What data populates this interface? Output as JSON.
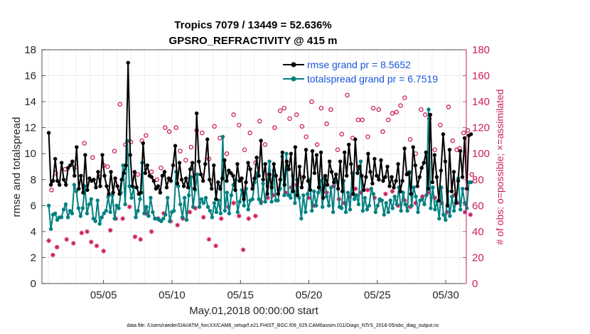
{
  "chart_data": {
    "type": "line",
    "title": "Tropics 7079 / 13449 = 52.636%",
    "subtitle": "GPSRO_REFRACTIVITY @ 415 m",
    "xlabel": "May.01,2018 00:00:00 start",
    "ylabel_left": "rmse and totalspread",
    "ylabel_right": "# of obs: o=possible; ×=assimilated",
    "footer": "data file: /Users/raeder/DAI/ATM_forcXX/CAM6_setup/f.e21.FHIST_BGC.f09_025.CAM6assim.011/Diags_NTrS_2018-05/obs_diag_output.nc",
    "xlim": [
      0.5,
      31.5
    ],
    "x_ticks": [
      5,
      10,
      15,
      20,
      25,
      30
    ],
    "x_tick_labels": [
      "05/05",
      "05/10",
      "05/15",
      "05/20",
      "05/25",
      "05/30"
    ],
    "ylim_left": [
      0,
      18
    ],
    "y_left_ticks": [
      "0",
      "2",
      "4",
      "6",
      "8",
      "10",
      "12",
      "14",
      "16",
      "18"
    ],
    "ylim_right": [
      0,
      180
    ],
    "y_right_ticks": [
      "0",
      "20",
      "40",
      "60",
      "80",
      "100",
      "120",
      "140",
      "160",
      "180"
    ],
    "series": [
      {
        "name": "rmse grand pr = 8.5652",
        "color": "#000000",
        "marker": "filled-circle",
        "axis": "left",
        "values": [
          11.6,
          7.6,
          7.9,
          9.6,
          7.9,
          7.6,
          9.3,
          8.0,
          7.6,
          8.9,
          9.1,
          9.4,
          8.3,
          10.5,
          7.3,
          8.3,
          7.0,
          9.9,
          7.2,
          8.1,
          7.9,
          8.0,
          7.4,
          8.6,
          7.5,
          9.9,
          8.3,
          7.5,
          6.9,
          8.6,
          7.0,
          8.1,
          7.5,
          6.9,
          8.0,
          8.5,
          9.1,
          17.0,
          9.9,
          7.5,
          8.6,
          7.4,
          6.9,
          7.0,
          10.8,
          8.5,
          9.1,
          8.3,
          8.2,
          7.9,
          7.3,
          7.5,
          7.0,
          8.3,
          8.6,
          7.4,
          8.1,
          7.9,
          9.1,
          10.6,
          7.7,
          9.3,
          8.0,
          7.5,
          8.1,
          7.4,
          8.8,
          9.3,
          7.3,
          13.1,
          9.4,
          8.4,
          7.9,
          9.2,
          11.1,
          8.0,
          7.3,
          9.1,
          6.5,
          7.8,
          7.3,
          8.1,
          9.5,
          7.9,
          8.7,
          8.5,
          8.3,
          7.2,
          9.2,
          7.9,
          8.1,
          6.5,
          7.8,
          9.3,
          8.8,
          7.3,
          8.1,
          9.7,
          8.3,
          11.0,
          8.0,
          9.2,
          6.9,
          8.4,
          7.4,
          9.2,
          8.3,
          6.9,
          8.0,
          10.1,
          7.6,
          9.4,
          8.8,
          10.0,
          7.1,
          10.5,
          6.8,
          9.0,
          7.4,
          8.2,
          10.3,
          7.9,
          7.2,
          10.2,
          8.5,
          9.9,
          7.4,
          10.1,
          6.6,
          8.3,
          7.6,
          9.4,
          8.6,
          7.8,
          8.4,
          7.3,
          9.4,
          7.1,
          10.1,
          8.3,
          10.7,
          9.2,
          6.9,
          11.1,
          8.5,
          9.0,
          8.3,
          7.2,
          8.2,
          10.0,
          8.6,
          7.7,
          9.6,
          8.3,
          8.0,
          9.5,
          7.9,
          8.2,
          9.0,
          7.5,
          8.2,
          7.4,
          7.9,
          9.2,
          7.1,
          7.9,
          10.4,
          8.4,
          8.5,
          6.9,
          10.5,
          9.1,
          7.5,
          8.2,
          8.9,
          9.3,
          10.1,
          7.3,
          13.0,
          7.8,
          9.9,
          8.2,
          6.4,
          8.7,
          11.5,
          9.4,
          6.0,
          10.3,
          7.1,
          8.6,
          6.2,
          7.9,
          10.2,
          8.2,
          11.2,
          7.3,
          11.4,
          11.5
        ]
      },
      {
        "name": "totalspread grand pr = 6.7519",
        "color": "#008080",
        "marker": "filled-circle",
        "axis": "left",
        "values": [
          6.0,
          4.2,
          5.3,
          5.4,
          4.9,
          5.1,
          5.1,
          5.7,
          6.1,
          5.1,
          5.6,
          5.4,
          7.6,
          7.1,
          5.8,
          5.2,
          5.8,
          7.5,
          5.4,
          6.1,
          6.5,
          5.0,
          4.8,
          6.4,
          4.6,
          5.1,
          5.4,
          5.6,
          6.7,
          5.5,
          6.8,
          5.0,
          6.0,
          5.8,
          7.0,
          9.1,
          6.1,
          11.0,
          7.5,
          6.6,
          7.4,
          5.1,
          5.6,
          6.5,
          9.3,
          5.4,
          5.9,
          5.2,
          6.6,
          5.5,
          5.0,
          5.0,
          4.9,
          4.8,
          5.0,
          5.3,
          6.6,
          4.8,
          5.5,
          5.6,
          8.6,
          7.5,
          6.1,
          5.1,
          6.6,
          4.9,
          6.8,
          8.2,
          5.9,
          7.2,
          8.4,
          5.9,
          6.5,
          6.2,
          6.6,
          5.9,
          5.6,
          5.1,
          6.2,
          5.5,
          6.4,
          5.4,
          11.3,
          5.6,
          7.0,
          5.4,
          6.8,
          7.6,
          8.0,
          5.5,
          6.3,
          7.2,
          6.0,
          7.3,
          5.7,
          6.4,
          6.5,
          7.8,
          8.5,
          6.5,
          6.2,
          7.7,
          6.3,
          7.5,
          9.4,
          6.3,
          8.7,
          6.4,
          6.4,
          7.3,
          9.8,
          6.8,
          10.0,
          6.8,
          6.6,
          8.3,
          6.2,
          8.0,
          6.6,
          5.0,
          6.8,
          5.5,
          6.9,
          8.0,
          5.6,
          7.1,
          6.0,
          7.0,
          7.9,
          5.9,
          8.1,
          6.7,
          6.0,
          7.4,
          5.5,
          8.0,
          7.8,
          5.9,
          5.8,
          7.9,
          5.5,
          7.0,
          5.7,
          8.5,
          6.5,
          6.8,
          6.1,
          9.4,
          5.6,
          6.6,
          5.7,
          6.0,
          7.3,
          6.9,
          5.5,
          6.0,
          6.5,
          6.4,
          5.3,
          6.2,
          5.5,
          6.4,
          5.8,
          6.7,
          6.1,
          7.4,
          5.6,
          7.0,
          6.1,
          5.6,
          8.6,
          6.0,
          7.4,
          6.7,
          5.5,
          6.4,
          6.5,
          6.1,
          6.8,
          13.4,
          5.8,
          7.4,
          5.7,
          6.3,
          5.0,
          7.4,
          5.3,
          4.9,
          7.1,
          5.2,
          6.7,
          5.6,
          6.4,
          8.1,
          5.7,
          7.3,
          6.2,
          5.8,
          7.8,
          7.8
        ]
      },
      {
        "name": "obs possible",
        "color": "#cc1c5a",
        "marker": "open-circle",
        "axis": "right",
        "values": [
          [
            1.2,
            72
          ],
          [
            1.5,
            85
          ],
          [
            2.2,
            88
          ],
          [
            3.0,
            90
          ],
          [
            3.6,
            108
          ],
          [
            4.2,
            97
          ],
          [
            4.7,
            82
          ],
          [
            5.0,
            91
          ],
          [
            5.3,
            90
          ],
          [
            5.8,
            102
          ],
          [
            6.2,
            138
          ],
          [
            6.6,
            107
          ],
          [
            7.0,
            109
          ],
          [
            7.5,
            84
          ],
          [
            7.8,
            110
          ],
          [
            8.1,
            114
          ],
          [
            8.5,
            86
          ],
          [
            8.9,
            80
          ],
          [
            9.2,
            89
          ],
          [
            9.5,
            120
          ],
          [
            9.8,
            117
          ],
          [
            10.3,
            120
          ],
          [
            10.6,
            102
          ],
          [
            11.0,
            95
          ],
          [
            11.4,
            105
          ],
          [
            11.8,
            118
          ],
          [
            12.2,
            116
          ],
          [
            12.7,
            96
          ],
          [
            13.1,
            121
          ],
          [
            13.5,
            112
          ],
          [
            14.0,
            100
          ],
          [
            14.5,
            130
          ],
          [
            14.9,
            122
          ],
          [
            15.3,
            103
          ],
          [
            15.7,
            116
          ],
          [
            16.1,
            93
          ],
          [
            16.4,
            125
          ],
          [
            16.8,
            107
          ],
          [
            17.1,
            84
          ],
          [
            17.5,
            120
          ],
          [
            17.9,
            133
          ],
          [
            18.2,
            135
          ],
          [
            18.6,
            127
          ],
          [
            19.1,
            130
          ],
          [
            19.5,
            121
          ],
          [
            19.8,
            113
          ],
          [
            20.2,
            140
          ],
          [
            20.6,
            107
          ],
          [
            20.9,
            135
          ],
          [
            21.3,
            123
          ],
          [
            21.6,
            134
          ],
          [
            22.1,
            103
          ],
          [
            22.4,
            115
          ],
          [
            22.8,
            145
          ],
          [
            23.2,
            112
          ],
          [
            23.6,
            126
          ],
          [
            23.9,
            126
          ],
          [
            24.3,
            113
          ],
          [
            24.7,
            135
          ],
          [
            25.1,
            134
          ],
          [
            25.4,
            117
          ],
          [
            25.8,
            126
          ],
          [
            26.1,
            131
          ],
          [
            26.4,
            132
          ],
          [
            26.7,
            137
          ],
          [
            27.0,
            143
          ],
          [
            27.4,
            111
          ],
          [
            27.8,
            100
          ],
          [
            28.2,
            134
          ],
          [
            28.5,
            130
          ],
          [
            28.8,
            127
          ],
          [
            29.2,
            103
          ],
          [
            29.6,
            122
          ],
          [
            30.2,
            136
          ],
          [
            30.5,
            110
          ],
          [
            30.8,
            103
          ],
          [
            31.0,
            104
          ],
          [
            31.3,
            116
          ],
          [
            31.6,
            118
          ],
          [
            31.9,
            84
          ]
        ]
      },
      {
        "name": "obs assimilated",
        "color": "#cc1c5a",
        "marker": "asterisk",
        "axis": "right",
        "values": [
          [
            1.0,
            33
          ],
          [
            1.3,
            22
          ],
          [
            1.6,
            28
          ],
          [
            2.3,
            34
          ],
          [
            2.8,
            31
          ],
          [
            3.4,
            39
          ],
          [
            3.8,
            40
          ],
          [
            4.1,
            32
          ],
          [
            4.5,
            29
          ],
          [
            5.0,
            25
          ],
          [
            5.5,
            41
          ],
          [
            5.9,
            50
          ],
          [
            6.4,
            50
          ],
          [
            6.9,
            59
          ],
          [
            7.3,
            36
          ],
          [
            7.7,
            34
          ],
          [
            8.1,
            54
          ],
          [
            8.5,
            40
          ],
          [
            9.0,
            50
          ],
          [
            9.4,
            54
          ],
          [
            9.9,
            48
          ],
          [
            10.4,
            45
          ],
          [
            10.8,
            50
          ],
          [
            11.3,
            55
          ],
          [
            11.7,
            58
          ],
          [
            12.3,
            51
          ],
          [
            12.7,
            34
          ],
          [
            13.2,
            29
          ],
          [
            13.6,
            50
          ],
          [
            14.1,
            59
          ],
          [
            14.5,
            62
          ],
          [
            14.9,
            52
          ],
          [
            15.2,
            26
          ],
          [
            15.6,
            50
          ],
          [
            16.1,
            52
          ],
          [
            16.5,
            63
          ],
          [
            17.0,
            66
          ],
          [
            17.4,
            68
          ],
          [
            17.8,
            72
          ],
          [
            18.3,
            70
          ],
          [
            18.7,
            74
          ],
          [
            19.1,
            76
          ],
          [
            19.6,
            82
          ],
          [
            20.0,
            66
          ],
          [
            20.4,
            60
          ],
          [
            20.9,
            72
          ],
          [
            21.3,
            70
          ],
          [
            21.8,
            75
          ],
          [
            22.2,
            65
          ],
          [
            22.6,
            62
          ],
          [
            23.0,
            67
          ],
          [
            23.4,
            73
          ],
          [
            23.8,
            70
          ],
          [
            24.3,
            72
          ],
          [
            24.8,
            66
          ],
          [
            25.2,
            64
          ],
          [
            25.6,
            69
          ],
          [
            26.1,
            71
          ],
          [
            26.5,
            60
          ],
          [
            27.0,
            64
          ],
          [
            27.4,
            59
          ],
          [
            27.8,
            62
          ],
          [
            28.3,
            67
          ],
          [
            28.7,
            70
          ],
          [
            29.2,
            66
          ],
          [
            29.7,
            62
          ],
          [
            30.1,
            55
          ],
          [
            30.6,
            68
          ],
          [
            31.0,
            62
          ],
          [
            31.4,
            55
          ],
          [
            31.8,
            53
          ]
        ]
      }
    ]
  }
}
